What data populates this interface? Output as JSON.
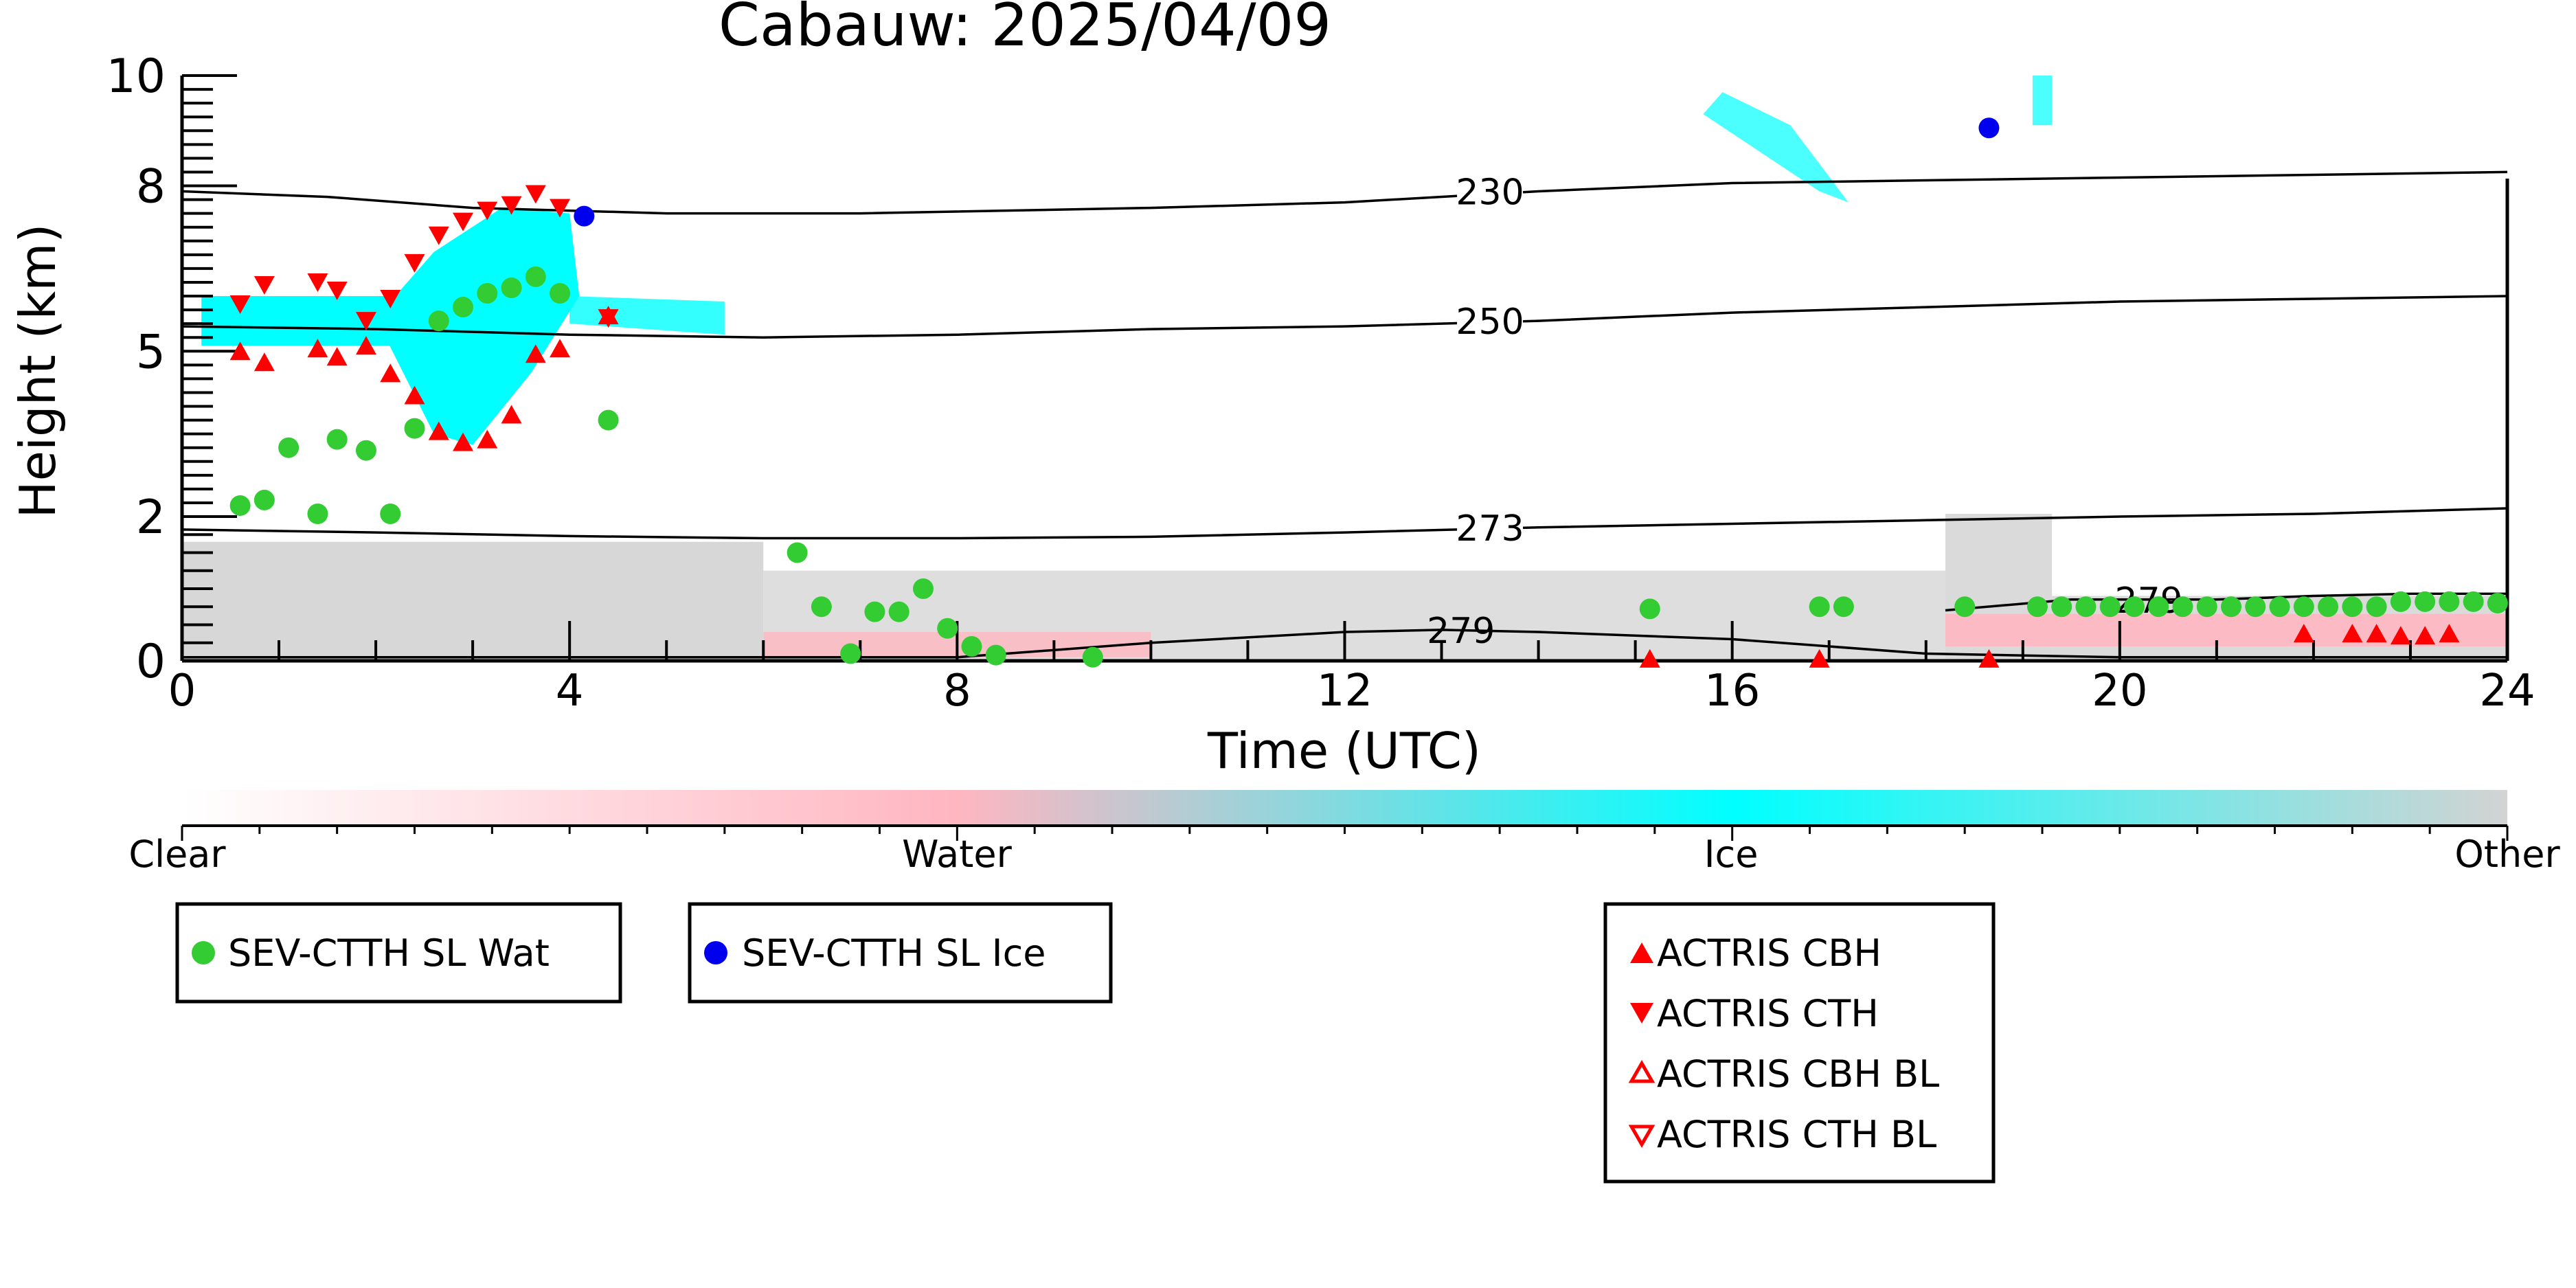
{
  "chart_data": {
    "type": "scatter",
    "title": "Cabauw: 2025/04/09",
    "xlabel": "Time (UTC)",
    "ylabel": "Height (km)",
    "xlim": [
      0,
      24
    ],
    "ylim_display": [
      0,
      10
    ],
    "y_scale": "piecewise: 0-2 km linear, 2-10 km linear",
    "xticks": [
      "0",
      "4",
      "8",
      "12",
      "16",
      "20",
      "24"
    ],
    "yticks": [
      "0",
      "2",
      "5",
      "8",
      "10"
    ],
    "colorbar": {
      "labels": [
        "Clear",
        "Water",
        "Ice",
        "Other"
      ],
      "colors": [
        "#ffffff",
        "#ffb6c1",
        "#00ffff",
        "#d3d3d3"
      ]
    },
    "contours": [
      {
        "label": "230",
        "points": [
          [
            0,
            7.9
          ],
          [
            1.5,
            7.8
          ],
          [
            3,
            7.6
          ],
          [
            5,
            7.5
          ],
          [
            7,
            7.5
          ],
          [
            10,
            7.6
          ],
          [
            12,
            7.7
          ],
          [
            14,
            7.9
          ],
          [
            16,
            8.05
          ],
          [
            18,
            8.1
          ],
          [
            20,
            8.15
          ],
          [
            22,
            8.2
          ],
          [
            24,
            8.25
          ]
        ]
      },
      {
        "label": "250",
        "points": [
          [
            0,
            5.45
          ],
          [
            2,
            5.4
          ],
          [
            4,
            5.3
          ],
          [
            6,
            5.25
          ],
          [
            8,
            5.3
          ],
          [
            10,
            5.4
          ],
          [
            12,
            5.45
          ],
          [
            14,
            5.55
          ],
          [
            16,
            5.7
          ],
          [
            18,
            5.8
          ],
          [
            20,
            5.9
          ],
          [
            22,
            5.95
          ],
          [
            24,
            6.0
          ]
        ]
      },
      {
        "label": "273",
        "points": [
          [
            0,
            1.82
          ],
          [
            2,
            1.78
          ],
          [
            4,
            1.73
          ],
          [
            6,
            1.7
          ],
          [
            8,
            1.7
          ],
          [
            10,
            1.72
          ],
          [
            12,
            1.78
          ],
          [
            14,
            1.85
          ],
          [
            16,
            1.9
          ],
          [
            18,
            1.95
          ],
          [
            20,
            2.0
          ],
          [
            22,
            2.05
          ],
          [
            24,
            2.15
          ]
        ]
      },
      {
        "label": "279",
        "points": [
          [
            0,
            0.05
          ],
          [
            8,
            0.05
          ],
          [
            10,
            0.25
          ],
          [
            12,
            0.4
          ],
          [
            13,
            0.43
          ],
          [
            14,
            0.4
          ],
          [
            16,
            0.3
          ],
          [
            18,
            0.1
          ],
          [
            20,
            0.05
          ],
          [
            24,
            0.05
          ]
        ]
      },
      {
        "label": "279",
        "points": [
          [
            18.2,
            0.7
          ],
          [
            19.5,
            0.85
          ],
          [
            21,
            0.85
          ],
          [
            22,
            0.9
          ],
          [
            23,
            0.93
          ],
          [
            24,
            0.93
          ]
        ]
      }
    ],
    "series": [
      {
        "name": "SEV-CTTH SL Wat",
        "color": "#33cc33",
        "marker": "circle",
        "points": [
          [
            0.6,
            2.2
          ],
          [
            0.85,
            2.3
          ],
          [
            1.1,
            3.25
          ],
          [
            1.4,
            2.05
          ],
          [
            1.6,
            3.4
          ],
          [
            1.9,
            3.2
          ],
          [
            2.15,
            2.05
          ],
          [
            2.4,
            3.6
          ],
          [
            2.65,
            5.55
          ],
          [
            2.9,
            5.8
          ],
          [
            3.15,
            6.05
          ],
          [
            3.4,
            6.15
          ],
          [
            3.65,
            6.35
          ],
          [
            3.9,
            6.05
          ],
          [
            4.4,
            3.75
          ],
          [
            6.35,
            1.5
          ],
          [
            6.6,
            0.75
          ],
          [
            6.9,
            0.1
          ],
          [
            7.15,
            0.68
          ],
          [
            7.4,
            0.68
          ],
          [
            7.65,
            1.0
          ],
          [
            7.9,
            0.45
          ],
          [
            8.15,
            0.2
          ],
          [
            8.4,
            0.08
          ],
          [
            9.4,
            0.05
          ],
          [
            15.15,
            0.72
          ],
          [
            16.9,
            0.75
          ],
          [
            17.15,
            0.75
          ],
          [
            18.4,
            0.75
          ],
          [
            19.15,
            0.75
          ],
          [
            19.4,
            0.75
          ],
          [
            19.65,
            0.75
          ],
          [
            19.9,
            0.75
          ],
          [
            20.15,
            0.75
          ],
          [
            20.4,
            0.75
          ],
          [
            20.65,
            0.75
          ],
          [
            20.9,
            0.75
          ],
          [
            21.15,
            0.75
          ],
          [
            21.4,
            0.75
          ],
          [
            21.65,
            0.75
          ],
          [
            21.9,
            0.75
          ],
          [
            22.15,
            0.75
          ],
          [
            22.4,
            0.75
          ],
          [
            22.65,
            0.75
          ],
          [
            22.9,
            0.82
          ],
          [
            23.15,
            0.82
          ],
          [
            23.4,
            0.82
          ],
          [
            23.65,
            0.82
          ],
          [
            23.9,
            0.8
          ]
        ]
      },
      {
        "name": "SEV-CTTH SL Ice",
        "color": "#0000ee",
        "marker": "circle",
        "points": [
          [
            4.15,
            7.45
          ],
          [
            18.65,
            9.05
          ]
        ]
      },
      {
        "name": "ACTRIS CBH",
        "color": "#ff0000",
        "marker": "triangle-up",
        "points": [
          [
            0.6,
            5.0
          ],
          [
            0.85,
            4.8
          ],
          [
            1.4,
            5.05
          ],
          [
            1.6,
            4.9
          ],
          [
            1.9,
            5.1
          ],
          [
            2.15,
            4.6
          ],
          [
            2.4,
            4.2
          ],
          [
            2.65,
            3.55
          ],
          [
            2.9,
            3.35
          ],
          [
            3.15,
            3.4
          ],
          [
            3.4,
            3.85
          ],
          [
            3.65,
            4.95
          ],
          [
            3.9,
            5.05
          ],
          [
            4.4,
            5.65
          ],
          [
            15.15,
            0.03
          ],
          [
            16.9,
            0.03
          ],
          [
            18.65,
            0.03
          ],
          [
            21.9,
            0.38
          ],
          [
            22.4,
            0.38
          ],
          [
            22.65,
            0.38
          ],
          [
            22.9,
            0.35
          ],
          [
            23.15,
            0.35
          ],
          [
            23.4,
            0.38
          ]
        ]
      },
      {
        "name": "ACTRIS CTH",
        "color": "#ff0000",
        "marker": "triangle-down",
        "points": [
          [
            0.6,
            5.85
          ],
          [
            0.85,
            6.2
          ],
          [
            1.4,
            6.25
          ],
          [
            1.6,
            6.1
          ],
          [
            1.9,
            5.55
          ],
          [
            2.15,
            5.95
          ],
          [
            2.4,
            6.6
          ],
          [
            2.65,
            7.1
          ],
          [
            2.9,
            7.35
          ],
          [
            3.15,
            7.55
          ],
          [
            3.4,
            7.65
          ],
          [
            3.65,
            7.85
          ],
          [
            3.9,
            7.6
          ],
          [
            4.4,
            5.6
          ]
        ]
      },
      {
        "name": "ACTRIS CBH BL",
        "color": "#ff0000",
        "marker": "triangle-up-open",
        "points": []
      },
      {
        "name": "ACTRIS CTH BL",
        "color": "#ff0000",
        "marker": "triangle-down-open",
        "points": []
      }
    ],
    "legend": {
      "box1": [
        "SEV-CTTH SL Wat"
      ],
      "box2": [
        "SEV-CTTH SL Ice"
      ],
      "box3": [
        "ACTRIS CBH",
        "ACTRIS CTH",
        "ACTRIS CBH BL",
        "ACTRIS CTH BL"
      ],
      "placement": "below colorbar"
    }
  }
}
